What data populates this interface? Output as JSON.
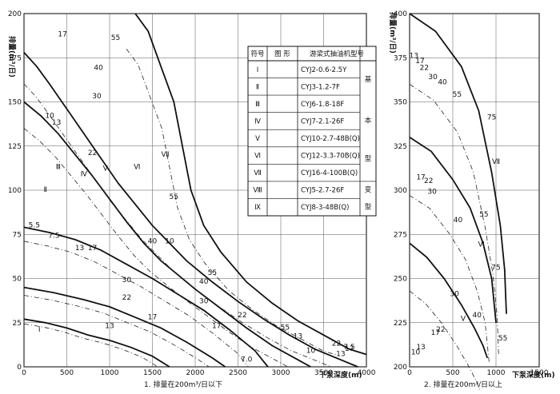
{
  "chart_data": [
    {
      "type": "line",
      "caption": "1. 排量在200m³/日以下",
      "xlabel": "下泵深度(m)",
      "ylabel": "排量(m³/日)",
      "xlim": [
        0,
        4000
      ],
      "ylim": [
        0,
        200
      ],
      "xticks": [
        "0",
        "500",
        "1000",
        "1500",
        "2000",
        "2500",
        "3000",
        "3500",
        "4000"
      ],
      "yticks": [
        "0",
        "25",
        "50",
        "75",
        "100",
        "125",
        "150",
        "175",
        "200"
      ],
      "grid": true,
      "series": [
        {
          "name": "Ⅰ",
          "points": [
            [
              0,
              27
            ],
            [
              250,
              25
            ],
            [
              500,
              22
            ],
            [
              750,
              18
            ],
            [
              1000,
              15
            ],
            [
              1250,
              11
            ],
            [
              1500,
              6
            ],
            [
              1700,
              0
            ]
          ]
        },
        {
          "name": "Ⅱ",
          "points": [
            [
              0,
              45
            ],
            [
              350,
              42
            ],
            [
              700,
              38
            ],
            [
              1000,
              34
            ],
            [
              1300,
              28
            ],
            [
              1600,
              22
            ],
            [
              1900,
              14
            ],
            [
              2200,
              5
            ],
            [
              2350,
              0
            ]
          ]
        },
        {
          "name": "Ⅲ",
          "points": [
            [
              0,
              79
            ],
            [
              300,
              76
            ],
            [
              600,
              72
            ],
            [
              900,
              66
            ],
            [
              1200,
              58
            ],
            [
              1500,
              50
            ],
            [
              1800,
              41
            ],
            [
              2100,
              32
            ],
            [
              2400,
              21
            ],
            [
              2700,
              9
            ],
            [
              2850,
              0
            ]
          ]
        },
        {
          "name": "Ⅳ",
          "points": [
            [
              0,
              150
            ],
            [
              200,
              142
            ],
            [
              400,
              132
            ],
            [
              600,
              120
            ],
            [
              800,
              108
            ],
            [
              1000,
              95
            ],
            [
              1200,
              82
            ],
            [
              1400,
              70
            ],
            [
              1600,
              60
            ],
            [
              1800,
              52
            ],
            [
              2000,
              44
            ],
            [
              2300,
              33
            ],
            [
              2600,
              22
            ],
            [
              2900,
              12
            ],
            [
              3200,
              4
            ],
            [
              3350,
              0
            ]
          ]
        },
        {
          "name": "Ⅴ",
          "points": [
            [
              0,
              178
            ],
            [
              150,
              170
            ],
            [
              300,
              160
            ],
            [
              500,
              146
            ],
            [
              700,
              132
            ],
            [
              900,
              118
            ],
            [
              1100,
              104
            ],
            [
              1300,
              92
            ],
            [
              1500,
              80
            ],
            [
              1700,
              70
            ],
            [
              1900,
              60
            ],
            [
              2200,
              48
            ],
            [
              2500,
              37
            ],
            [
              2800,
              27
            ],
            [
              3100,
              18
            ],
            [
              3400,
              10
            ],
            [
              3700,
              4
            ],
            [
              3900,
              0
            ]
          ]
        },
        {
          "name": "Ⅶ",
          "points": [
            [
              1300,
              200
            ],
            [
              1450,
              190
            ],
            [
              1600,
              170
            ],
            [
              1750,
              150
            ],
            [
              1850,
              125
            ],
            [
              1950,
              100
            ],
            [
              2100,
              80
            ],
            [
              2300,
              65
            ],
            [
              2600,
              48
            ],
            [
              2900,
              36
            ],
            [
              3200,
              26
            ],
            [
              3500,
              18
            ],
            [
              3800,
              10
            ],
            [
              4000,
              7
            ]
          ]
        }
      ],
      "labels": [
        {
          "text": "Ⅰ",
          "x": 180,
          "y": 20
        },
        {
          "text": "Ⅱ",
          "x": 250,
          "y": 99
        },
        {
          "text": "Ⅲ",
          "x": 400,
          "y": 112
        },
        {
          "text": "Ⅳ",
          "x": 700,
          "y": 108
        },
        {
          "text": "Ⅴ",
          "x": 950,
          "y": 111
        },
        {
          "text": "Ⅵ",
          "x": 1320,
          "y": 112
        },
        {
          "text": "Ⅶ",
          "x": 1650,
          "y": 119
        },
        {
          "text": "17",
          "x": 450,
          "y": 187
        },
        {
          "text": "30",
          "x": 850,
          "y": 152
        },
        {
          "text": "40",
          "x": 870,
          "y": 168
        },
        {
          "text": "55",
          "x": 1070,
          "y": 185
        },
        {
          "text": "22",
          "x": 800,
          "y": 120
        },
        {
          "text": "13",
          "x": 380,
          "y": 137
        },
        {
          "text": "10",
          "x": 300,
          "y": 141
        },
        {
          "text": "17",
          "x": 800,
          "y": 66
        },
        {
          "text": "13",
          "x": 650,
          "y": 66
        },
        {
          "text": "7.5",
          "x": 350,
          "y": 73
        },
        {
          "text": "5.5",
          "x": 120,
          "y": 79
        },
        {
          "text": "40",
          "x": 1500,
          "y": 70
        },
        {
          "text": "55",
          "x": 1750,
          "y": 95
        },
        {
          "text": "10",
          "x": 1700,
          "y": 70
        },
        {
          "text": "30",
          "x": 1200,
          "y": 48
        },
        {
          "text": "22",
          "x": 1200,
          "y": 38
        },
        {
          "text": "17",
          "x": 1500,
          "y": 27
        },
        {
          "text": "13",
          "x": 1000,
          "y": 22
        },
        {
          "text": "55",
          "x": 2200,
          "y": 52
        },
        {
          "text": "40",
          "x": 2100,
          "y": 47
        },
        {
          "text": "30",
          "x": 2100,
          "y": 36
        },
        {
          "text": "22",
          "x": 2550,
          "y": 28
        },
        {
          "text": "17",
          "x": 2250,
          "y": 22
        },
        {
          "text": "13",
          "x": 3200,
          "y": 16
        },
        {
          "text": "22",
          "x": 3650,
          "y": 12
        },
        {
          "text": "17",
          "x": 3800,
          "y": 9
        },
        {
          "text": "13",
          "x": 3700,
          "y": 6
        },
        {
          "text": "7.5",
          "x": 3800,
          "y": 10
        },
        {
          "text": "7.0",
          "x": 2600,
          "y": 3
        },
        {
          "text": "55",
          "x": 3050,
          "y": 21
        },
        {
          "text": "10",
          "x": 3350,
          "y": 8
        }
      ]
    },
    {
      "type": "line",
      "caption": "2. 排量在200m³/日以上",
      "xlabel": "下泵深度(m)",
      "ylabel": "排量(m³/日)",
      "xlim": [
        0,
        1500
      ],
      "ylim": [
        200,
        400
      ],
      "xticks": [
        "0",
        "500",
        "1000",
        "1500"
      ],
      "yticks": [
        "200",
        "225",
        "250",
        "275",
        "300",
        "325",
        "350",
        "375",
        "400"
      ],
      "grid": true,
      "series": [
        {
          "name": "Ⅶ",
          "points": [
            [
              0,
              400
            ],
            [
              300,
              390
            ],
            [
              600,
              370
            ],
            [
              800,
              345
            ],
            [
              950,
              310
            ],
            [
              1050,
              280
            ],
            [
              1100,
              255
            ],
            [
              1120,
              230
            ]
          ]
        },
        {
          "name": "Ⅵ",
          "points": [
            [
              0,
              330
            ],
            [
              250,
              322
            ],
            [
              500,
              306
            ],
            [
              700,
              290
            ],
            [
              850,
              270
            ],
            [
              950,
              250
            ],
            [
              1000,
              225
            ]
          ]
        },
        {
          "name": "Ⅴ",
          "points": [
            [
              0,
              270
            ],
            [
              200,
              262
            ],
            [
              400,
              250
            ],
            [
              600,
              235
            ],
            [
              750,
              222
            ],
            [
              850,
              212
            ],
            [
              900,
              205
            ]
          ]
        }
      ],
      "labels": [
        {
          "text": "Ⅶ",
          "x": 1000,
          "y": 315
        },
        {
          "text": "Ⅵ",
          "x": 830,
          "y": 268
        },
        {
          "text": "Ⅴ",
          "x": 620,
          "y": 226
        },
        {
          "text": "40",
          "x": 380,
          "y": 360
        },
        {
          "text": "30",
          "x": 270,
          "y": 363
        },
        {
          "text": "22",
          "x": 170,
          "y": 368
        },
        {
          "text": "17",
          "x": 120,
          "y": 372
        },
        {
          "text": "13",
          "x": 50,
          "y": 375
        },
        {
          "text": "55",
          "x": 550,
          "y": 353
        },
        {
          "text": "75",
          "x": 950,
          "y": 340
        },
        {
          "text": "22",
          "x": 220,
          "y": 304
        },
        {
          "text": "17",
          "x": 130,
          "y": 306
        },
        {
          "text": "30",
          "x": 260,
          "y": 298
        },
        {
          "text": "40",
          "x": 560,
          "y": 282
        },
        {
          "text": "55",
          "x": 860,
          "y": 285
        },
        {
          "text": "75",
          "x": 1000,
          "y": 255
        },
        {
          "text": "30",
          "x": 520,
          "y": 240
        },
        {
          "text": "40",
          "x": 780,
          "y": 228
        },
        {
          "text": "17",
          "x": 300,
          "y": 218
        },
        {
          "text": "22",
          "x": 360,
          "y": 220
        },
        {
          "text": "13",
          "x": 130,
          "y": 210
        },
        {
          "text": "10",
          "x": 70,
          "y": 207
        },
        {
          "text": "55",
          "x": 1080,
          "y": 215
        }
      ]
    }
  ],
  "legend": {
    "headers": [
      "符号",
      "图 形",
      "游梁式抽油机型号"
    ],
    "rows": [
      {
        "symbol": "Ⅰ",
        "model": "CYJ2-0.6-2.5Y"
      },
      {
        "symbol": "Ⅱ",
        "model": "CYJ3-1.2-7F"
      },
      {
        "symbol": "Ⅲ",
        "model": "CYJ6-1.8-18F"
      },
      {
        "symbol": "Ⅳ",
        "model": "CYJ7-2.1-26F"
      },
      {
        "symbol": "Ⅴ",
        "model": "CYJ10-2.7-48B(Q)"
      },
      {
        "symbol": "Ⅵ",
        "model": "CYJ12-3.3-70B(Q)"
      },
      {
        "symbol": "Ⅶ",
        "model": "CYJ16-4-100B(Q)"
      },
      {
        "symbol": "Ⅷ",
        "model": "CYJ5-2.7-26F"
      },
      {
        "symbol": "Ⅸ",
        "model": "CYJ8-3-48B(Q)"
      }
    ],
    "group_basic": [
      "基",
      "本"
    ],
    "group_variant": [
      "型",
      "变",
      "型"
    ]
  }
}
